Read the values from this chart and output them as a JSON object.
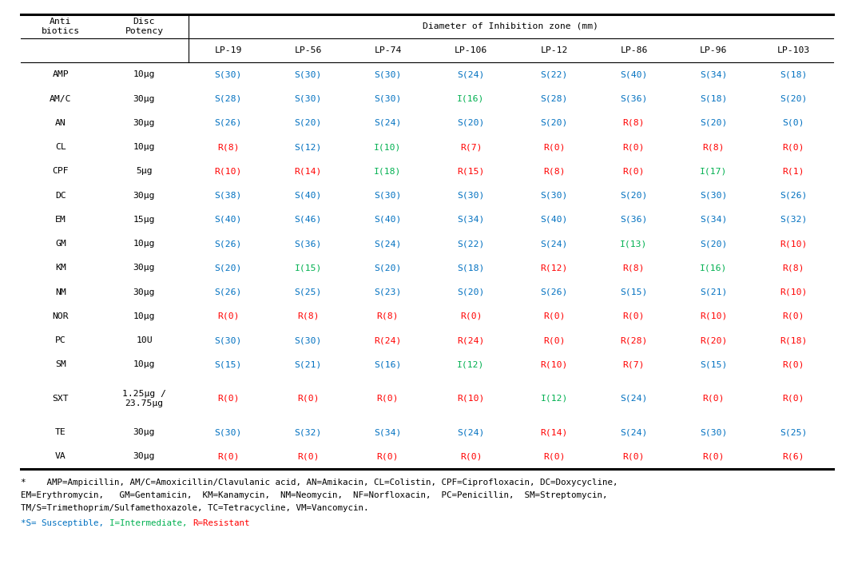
{
  "header_row1_col01": [
    "Anti\nbiotics",
    "Disc\nPotency"
  ],
  "header_span": "Diameter of Inhibition zone (mm)",
  "header_row2": [
    "LP-19",
    "LP-56",
    "LP-74",
    "LP-106",
    "LP-12",
    "LP-86",
    "LP-96",
    "LP-103"
  ],
  "antibiotics": [
    "AMP",
    "AM/C",
    "AN",
    "CL",
    "CPF",
    "DC",
    "EM",
    "GM",
    "KM",
    "NM",
    "NOR",
    "PC",
    "SM",
    "SXT",
    "TE",
    "VA"
  ],
  "potency": [
    "10μg",
    "30μg",
    "30μg",
    "10μg",
    "5μg",
    "30μg",
    "15μg",
    "10μg",
    "30μg",
    "30μg",
    "10μg",
    "10U",
    "10μg",
    "1.25μg /\n23.75μg",
    "30μg",
    "30μg"
  ],
  "data": [
    [
      [
        "S",
        30
      ],
      [
        "S",
        30
      ],
      [
        "S",
        30
      ],
      [
        "S",
        24
      ],
      [
        "S",
        22
      ],
      [
        "S",
        40
      ],
      [
        "S",
        34
      ],
      [
        "S",
        18
      ]
    ],
    [
      [
        "S",
        28
      ],
      [
        "S",
        30
      ],
      [
        "S",
        30
      ],
      [
        "I",
        16
      ],
      [
        "S",
        28
      ],
      [
        "S",
        36
      ],
      [
        "S",
        18
      ],
      [
        "S",
        20
      ]
    ],
    [
      [
        "S",
        26
      ],
      [
        "S",
        20
      ],
      [
        "S",
        24
      ],
      [
        "S",
        20
      ],
      [
        "S",
        20
      ],
      [
        "R",
        8
      ],
      [
        "S",
        20
      ],
      [
        "S",
        0
      ]
    ],
    [
      [
        "R",
        8
      ],
      [
        "S",
        12
      ],
      [
        "I",
        10
      ],
      [
        "R",
        7
      ],
      [
        "R",
        0
      ],
      [
        "R",
        0
      ],
      [
        "R",
        8
      ],
      [
        "R",
        0
      ]
    ],
    [
      [
        "R",
        10
      ],
      [
        "R",
        14
      ],
      [
        "I",
        18
      ],
      [
        "R",
        15
      ],
      [
        "R",
        8
      ],
      [
        "R",
        0
      ],
      [
        "I",
        17
      ],
      [
        "R",
        1
      ]
    ],
    [
      [
        "S",
        38
      ],
      [
        "S",
        40
      ],
      [
        "S",
        30
      ],
      [
        "S",
        30
      ],
      [
        "S",
        30
      ],
      [
        "S",
        20
      ],
      [
        "S",
        30
      ],
      [
        "S",
        26
      ]
    ],
    [
      [
        "S",
        40
      ],
      [
        "S",
        46
      ],
      [
        "S",
        40
      ],
      [
        "S",
        34
      ],
      [
        "S",
        40
      ],
      [
        "S",
        36
      ],
      [
        "S",
        34
      ],
      [
        "S",
        32
      ]
    ],
    [
      [
        "S",
        26
      ],
      [
        "S",
        36
      ],
      [
        "S",
        24
      ],
      [
        "S",
        22
      ],
      [
        "S",
        24
      ],
      [
        "I",
        13
      ],
      [
        "S",
        20
      ],
      [
        "R",
        10
      ]
    ],
    [
      [
        "S",
        20
      ],
      [
        "I",
        15
      ],
      [
        "S",
        20
      ],
      [
        "S",
        18
      ],
      [
        "R",
        12
      ],
      [
        "R",
        8
      ],
      [
        "I",
        16
      ],
      [
        "R",
        8
      ]
    ],
    [
      [
        "S",
        26
      ],
      [
        "S",
        25
      ],
      [
        "S",
        23
      ],
      [
        "S",
        20
      ],
      [
        "S",
        26
      ],
      [
        "S",
        15
      ],
      [
        "S",
        21
      ],
      [
        "R",
        10
      ]
    ],
    [
      [
        "R",
        0
      ],
      [
        "R",
        8
      ],
      [
        "R",
        8
      ],
      [
        "R",
        0
      ],
      [
        "R",
        0
      ],
      [
        "R",
        0
      ],
      [
        "R",
        10
      ],
      [
        "R",
        0
      ]
    ],
    [
      [
        "S",
        30
      ],
      [
        "S",
        30
      ],
      [
        "R",
        24
      ],
      [
        "R",
        24
      ],
      [
        "R",
        0
      ],
      [
        "R",
        28
      ],
      [
        "R",
        20
      ],
      [
        "R",
        18
      ]
    ],
    [
      [
        "S",
        15
      ],
      [
        "S",
        21
      ],
      [
        "S",
        16
      ],
      [
        "I",
        12
      ],
      [
        "R",
        10
      ],
      [
        "R",
        7
      ],
      [
        "S",
        15
      ],
      [
        "R",
        0
      ]
    ],
    [
      [
        "R",
        0
      ],
      [
        "R",
        0
      ],
      [
        "R",
        0
      ],
      [
        "R",
        10
      ],
      [
        "I",
        12
      ],
      [
        "S",
        24
      ],
      [
        "R",
        0
      ],
      [
        "R",
        0
      ]
    ],
    [
      [
        "S",
        30
      ],
      [
        "S",
        32
      ],
      [
        "S",
        34
      ],
      [
        "S",
        24
      ],
      [
        "R",
        14
      ],
      [
        "S",
        24
      ],
      [
        "S",
        30
      ],
      [
        "S",
        25
      ]
    ],
    [
      [
        "R",
        0
      ],
      [
        "R",
        0
      ],
      [
        "R",
        0
      ],
      [
        "R",
        0
      ],
      [
        "R",
        0
      ],
      [
        "R",
        0
      ],
      [
        "R",
        0
      ],
      [
        "R",
        6
      ]
    ]
  ],
  "color_S": "#0070C0",
  "color_I": "#00B050",
  "color_R": "#FF0000",
  "color_black": "#000000",
  "footnote1_line1": "*    AMP=Ampicillin, AM/C=Amoxicillin/Clavulanic acid, AN=Amikacin, CL=Colistin, CPF=Ciprofloxacin, DC=Doxycycline,",
  "footnote1_line2": "EM=Erythromycin,   GM=Gentamicin,  KM=Kanamycin,  NM=Neomycin,  NF=Norfloxacin,  PC=Penicillin,  SM=Streptomycin,",
  "footnote1_line3": "TM/S=Trimethoprim/Sulfamethoxazole, TC=Tetracycline, VM=Vancomycin.",
  "footnote2_parts": [
    {
      "text": "*S= Susceptible, ",
      "color": "#0070C0"
    },
    {
      "text": "I=Intermediate, ",
      "color": "#00B050"
    },
    {
      "text": "R=Resistant",
      "color": "#FF0000"
    }
  ],
  "bg_color": "#FFFFFF",
  "line_color": "#000000",
  "font_size_data": 8.2,
  "font_size_header": 8.2,
  "font_size_footnote": 7.8
}
